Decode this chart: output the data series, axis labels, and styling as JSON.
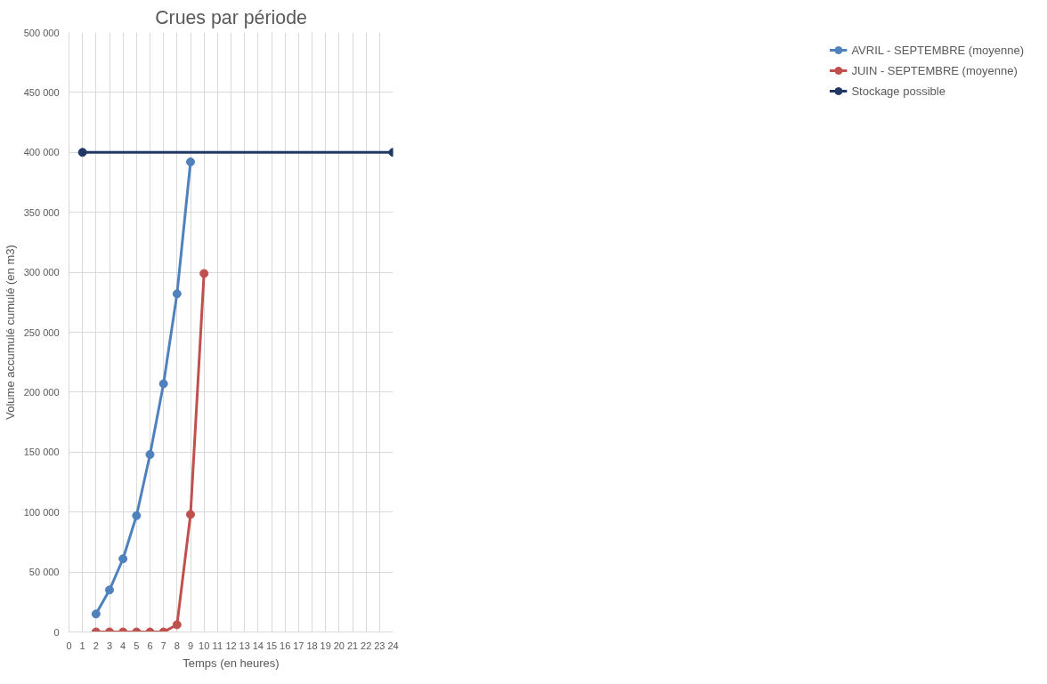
{
  "chart_data": {
    "type": "line",
    "title": "Crues par période",
    "xlabel": "Temps (en heures)",
    "ylabel": "Volume accumulé cumulé (en m3)",
    "xlim": [
      0,
      24
    ],
    "xticks": [
      0,
      1,
      2,
      3,
      4,
      5,
      6,
      7,
      8,
      9,
      10,
      11,
      12,
      13,
      14,
      15,
      16,
      17,
      18,
      19,
      20,
      21,
      22,
      23,
      24
    ],
    "ylim": [
      0,
      500000
    ],
    "yticks": [
      {
        "value": 0,
        "label": "0"
      },
      {
        "value": 50000,
        "label": "50 000"
      },
      {
        "value": 100000,
        "label": "100 000"
      },
      {
        "value": 150000,
        "label": "150 000"
      },
      {
        "value": 200000,
        "label": "200 000"
      },
      {
        "value": 250000,
        "label": "250 000"
      },
      {
        "value": 300000,
        "label": "300 000"
      },
      {
        "value": 350000,
        "label": "350 000"
      },
      {
        "value": 400000,
        "label": "400 000"
      },
      {
        "value": 450000,
        "label": "450 000"
      },
      {
        "value": 500000,
        "label": "500 000"
      }
    ],
    "grid": true,
    "legend": "right",
    "marker": "circle",
    "line_style": "solid",
    "series": [
      {
        "name": "AVRIL - SEPTEMBRE (moyenne)",
        "color": "#4f81bd",
        "x": [
          2,
          3,
          4,
          5,
          6,
          7,
          8,
          9
        ],
        "values": [
          15000,
          35000,
          61000,
          97000,
          148000,
          207000,
          282000,
          392000
        ]
      },
      {
        "name": "JUIN - SEPTEMBRE (moyenne)",
        "color": "#c0504d",
        "x": [
          2,
          3,
          4,
          5,
          6,
          7,
          8,
          9,
          10
        ],
        "values": [
          0,
          0,
          0,
          0,
          0,
          0,
          6000,
          98000,
          299000
        ]
      },
      {
        "name": "Stockage possible",
        "color": "#1f3864",
        "x": [
          1,
          24
        ],
        "values": [
          400000,
          400000
        ]
      }
    ]
  }
}
